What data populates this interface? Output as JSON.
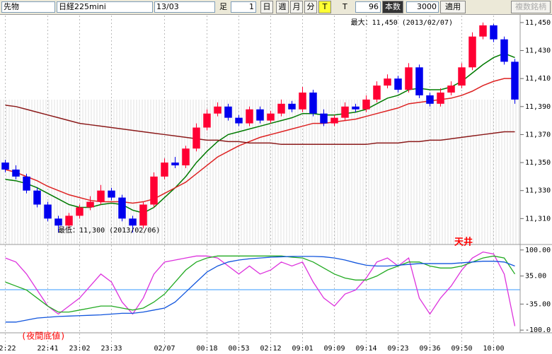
{
  "toolbar": {
    "market": "先物",
    "index": "日経225mini",
    "contract": "13/03",
    "bar_label": "足",
    "bar_count": "1",
    "day": "日",
    "week": "週",
    "month": "月",
    "minute": "分",
    "tick": "T",
    "t_label": "T",
    "t_count": "96",
    "count_label": "本数",
    "count": "3000",
    "apply": "適用",
    "multi": "複数銘柄"
  },
  "chart_data": [
    {
      "type": "candlestick",
      "annotations": [
        "最大：11,450 (2013/02/07)",
        "最低：11,300 (2013/02/06)"
      ],
      "categories": [
        "22:22",
        null,
        null,
        null,
        "22:41",
        null,
        null,
        "23:02",
        null,
        null,
        "23:33",
        null,
        null,
        null,
        null,
        "02/07",
        null,
        null,
        null,
        "00:18",
        null,
        null,
        "00:53",
        null,
        null,
        "02:12",
        null,
        null,
        "09:01",
        null,
        null,
        "09:09",
        null,
        null,
        "09:14",
        null,
        null,
        "09:23",
        null,
        null,
        "09:36",
        null,
        null,
        "09:50",
        null,
        null,
        "10:00",
        null,
        null
      ],
      "open": [
        11350,
        11345,
        11340,
        11330,
        11320,
        11310,
        11305,
        11312,
        11318,
        11322,
        11330,
        11325,
        11310,
        11305,
        11320,
        11340,
        11350,
        11348,
        11360,
        11375,
        11385,
        11390,
        11382,
        11378,
        11388,
        11380,
        11385,
        11392,
        11388,
        11400,
        11385,
        11378,
        11382,
        11390,
        11388,
        11395,
        11405,
        11410,
        11402,
        11418,
        11398,
        11392,
        11400,
        11405,
        11418,
        11440,
        11448,
        11438,
        11422
      ],
      "high": [
        11352,
        11348,
        11342,
        11332,
        11322,
        11312,
        11314,
        11320,
        11326,
        11334,
        11332,
        11327,
        11312,
        11322,
        11343,
        11353,
        11354,
        11362,
        11378,
        11388,
        11393,
        11392,
        11384,
        11390,
        11390,
        11387,
        11395,
        11394,
        11404,
        11402,
        11388,
        11384,
        11393,
        11392,
        11398,
        11408,
        11413,
        11412,
        11421,
        11420,
        11400,
        11403,
        11408,
        11421,
        11443,
        11450,
        11449,
        11440,
        11424
      ],
      "low": [
        11343,
        11338,
        11328,
        11318,
        11308,
        11300,
        11303,
        11310,
        11316,
        11320,
        11323,
        11308,
        11300,
        11303,
        11318,
        11338,
        11346,
        11346,
        11358,
        11373,
        11383,
        11380,
        11376,
        11376,
        11378,
        11378,
        11383,
        11386,
        11386,
        11383,
        11376,
        11376,
        11380,
        11386,
        11386,
        11393,
        11403,
        11400,
        11400,
        11396,
        11390,
        11390,
        11398,
        11403,
        11416,
        11438,
        11436,
        11420,
        11392
      ],
      "close": [
        11345,
        11340,
        11330,
        11320,
        11310,
        11305,
        11312,
        11318,
        11322,
        11330,
        11325,
        11310,
        11305,
        11320,
        11340,
        11350,
        11348,
        11360,
        11375,
        11385,
        11390,
        11382,
        11378,
        11388,
        11380,
        11385,
        11392,
        11388,
        11400,
        11385,
        11378,
        11382,
        11390,
        11388,
        11395,
        11405,
        11410,
        11402,
        11418,
        11398,
        11392,
        11400,
        11405,
        11418,
        11440,
        11448,
        11438,
        11422,
        11395
      ],
      "up_color": "#ff0033",
      "down_color": "#0000ee",
      "series": [
        {
          "color": "#007a00",
          "values": [
            11338,
            11337,
            11335,
            11332,
            11328,
            11324,
            11320,
            11318,
            11318,
            11320,
            11321,
            11320,
            11316,
            11314,
            11318,
            11325,
            11332,
            11340,
            11350,
            11358,
            11365,
            11370,
            11372,
            11374,
            11376,
            11378,
            11380,
            11382,
            11385,
            11385,
            11384,
            11384,
            11385,
            11386,
            11388,
            11392,
            11396,
            11398,
            11402,
            11403,
            11402,
            11402,
            11404,
            11408,
            11414,
            11420,
            11425,
            11428,
            11425
          ]
        },
        {
          "color": "#dd2222",
          "values": [
            11345,
            11343,
            11340,
            11337,
            11333,
            11330,
            11327,
            11325,
            11323,
            11322,
            11322,
            11322,
            11321,
            11322,
            11324,
            11328,
            11332,
            11336,
            11342,
            11348,
            11354,
            11358,
            11362,
            11365,
            11368,
            11370,
            11372,
            11374,
            11376,
            11378,
            11378,
            11379,
            11380,
            11381,
            11383,
            11385,
            11387,
            11389,
            11392,
            11393,
            11394,
            11395,
            11396,
            11398,
            11401,
            11405,
            11408,
            11410,
            11410
          ]
        },
        {
          "color": "#8b1a1a",
          "values": [
            11391,
            11390,
            11388,
            11386,
            11384,
            11382,
            11380,
            11378,
            11377,
            11376,
            11375,
            11374,
            11373,
            11372,
            11371,
            11370,
            11369,
            11368,
            11367,
            11366,
            11366,
            11365,
            11365,
            11364,
            11364,
            11364,
            11363,
            11363,
            11363,
            11363,
            11363,
            11363,
            11363,
            11363,
            11363,
            11364,
            11364,
            11364,
            11365,
            11365,
            11366,
            11366,
            11367,
            11368,
            11369,
            11370,
            11371,
            11372,
            11372
          ]
        }
      ],
      "ylim": [
        11292,
        11455
      ],
      "yticks": [
        {
          "value": 11450,
          "label": "11,450"
        },
        {
          "value": 11430,
          "label": "11,430"
        },
        {
          "value": 11410,
          "label": "11,410"
        },
        {
          "value": 11390,
          "label": "11,390"
        },
        {
          "value": 11370,
          "label": "11,370"
        },
        {
          "value": 11350,
          "label": "11,350"
        },
        {
          "value": 11330,
          "label": "11,330"
        },
        {
          "value": 11310,
          "label": "11,310"
        }
      ]
    },
    {
      "type": "line",
      "annotations": [
        "天井",
        "(夜間底値)"
      ],
      "series": [
        {
          "color": "#dd33dd",
          "values": [
            80,
            70,
            40,
            0,
            -40,
            -60,
            -40,
            -20,
            10,
            40,
            20,
            -30,
            -60,
            -20,
            40,
            70,
            75,
            80,
            85,
            85,
            80,
            60,
            40,
            60,
            40,
            50,
            70,
            60,
            70,
            20,
            -20,
            -40,
            -10,
            0,
            30,
            70,
            80,
            60,
            80,
            -20,
            -60,
            -20,
            10,
            50,
            80,
            95,
            90,
            40,
            -90
          ]
        },
        {
          "color": "#22aa22",
          "values": [
            20,
            10,
            0,
            -20,
            -40,
            -55,
            -55,
            -50,
            -45,
            -40,
            -40,
            -45,
            -50,
            -45,
            -30,
            -10,
            20,
            50,
            70,
            80,
            85,
            85,
            85,
            85,
            85,
            85,
            85,
            82,
            80,
            70,
            55,
            40,
            30,
            25,
            25,
            35,
            50,
            60,
            70,
            70,
            60,
            55,
            55,
            60,
            70,
            80,
            85,
            80,
            40
          ]
        },
        {
          "color": "#1155dd",
          "values": [
            -80,
            -80,
            -75,
            -70,
            -68,
            -66,
            -65,
            -64,
            -63,
            -62,
            -60,
            -58,
            -58,
            -55,
            -50,
            -45,
            -30,
            -5,
            20,
            45,
            60,
            70,
            75,
            78,
            80,
            82,
            83,
            84,
            84,
            84,
            83,
            80,
            75,
            68,
            62,
            60,
            60,
            62,
            64,
            66,
            66,
            66,
            66,
            68,
            70,
            72,
            72,
            70,
            60
          ]
        }
      ],
      "ylim": [
        -105,
        112
      ],
      "yticks": [
        {
          "value": 100,
          "label": "100.00"
        },
        {
          "value": 35,
          "label": "35.00"
        },
        {
          "value": -35,
          "label": "-35.00"
        },
        {
          "value": -100,
          "label": "-100.0"
        }
      ]
    }
  ]
}
